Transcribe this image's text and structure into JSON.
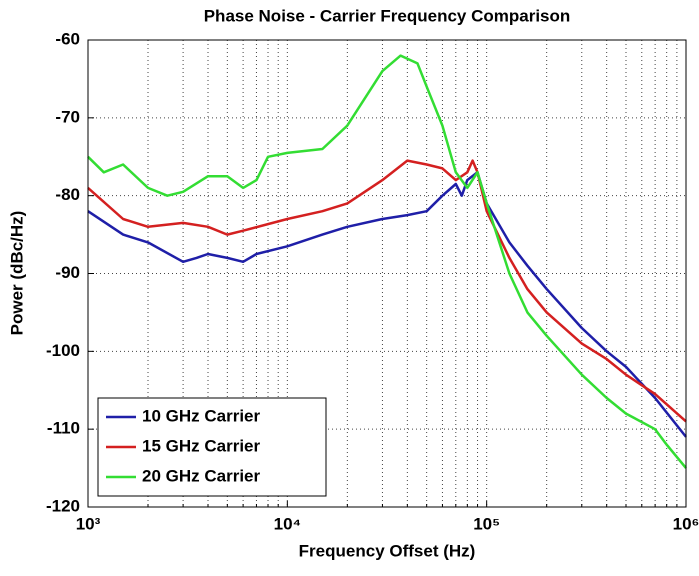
{
  "chart_data": {
    "type": "line",
    "title": "Phase Noise - Carrier Frequency Comparison",
    "x_label": "Frequency Offset (Hz)",
    "y_label": "Power (dBc/Hz)",
    "log_x": true,
    "grid": true,
    "legend": "lower left",
    "xlim": [
      1000,
      1000000
    ],
    "xticks": [
      {
        "value": 1000,
        "label": "10³"
      },
      {
        "value": 10000,
        "label": "10⁴"
      },
      {
        "value": 100000,
        "label": "10⁵"
      },
      {
        "value": 1000000,
        "label": "10⁶"
      }
    ],
    "xminorticks": [
      2000,
      3000,
      4000,
      5000,
      6000,
      7000,
      8000,
      9000,
      20000,
      30000,
      40000,
      50000,
      60000,
      70000,
      80000,
      90000,
      200000,
      300000,
      400000,
      500000,
      600000,
      700000,
      800000,
      900000
    ],
    "ylim": [
      -120,
      -60
    ],
    "yticks": [
      -120,
      -110,
      -100,
      -90,
      -80,
      -70,
      -60
    ],
    "series": [
      {
        "name": "10 GHz Carrier",
        "color": "#1f1fa8",
        "x": [
          1000,
          1500,
          2000,
          3000,
          3500,
          4000,
          5000,
          6000,
          7000,
          10000,
          15000,
          20000,
          30000,
          40000,
          50000,
          60000,
          70000,
          75000,
          80000,
          90000,
          100000,
          130000,
          160000,
          200000,
          300000,
          400000,
          500000,
          700000,
          1000000
        ],
        "values": [
          -82,
          -85,
          -86,
          -88.5,
          -88,
          -87.5,
          -88,
          -88.5,
          -87.5,
          -86.5,
          -85,
          -84,
          -83,
          -82.5,
          -82,
          -80,
          -78.5,
          -80,
          -78,
          -77,
          -81,
          -86,
          -89,
          -92,
          -97,
          -100,
          -102,
          -106,
          -111
        ]
      },
      {
        "name": "15 GHz Carrier",
        "color": "#d42020",
        "x": [
          1000,
          1500,
          2000,
          3000,
          4000,
          5000,
          6000,
          10000,
          15000,
          20000,
          30000,
          40000,
          50000,
          60000,
          70000,
          80000,
          85000,
          90000,
          100000,
          130000,
          160000,
          200000,
          300000,
          400000,
          500000,
          700000,
          1000000
        ],
        "values": [
          -79,
          -83,
          -84,
          -83.5,
          -84,
          -85,
          -84.5,
          -83,
          -82,
          -81,
          -78,
          -75.5,
          -76,
          -76.5,
          -78,
          -77,
          -75.5,
          -77,
          -82,
          -88,
          -92,
          -95,
          -99,
          -101,
          -103,
          -105.5,
          -109
        ]
      },
      {
        "name": "20 GHz Carrier",
        "color": "#33dd33",
        "x": [
          1000,
          1200,
          1500,
          2000,
          2500,
          3000,
          4000,
          5000,
          6000,
          7000,
          8000,
          10000,
          15000,
          20000,
          30000,
          37000,
          45000,
          50000,
          60000,
          70000,
          80000,
          90000,
          100000,
          130000,
          160000,
          200000,
          300000,
          400000,
          500000,
          700000,
          800000,
          1000000
        ],
        "values": [
          -75,
          -77,
          -76,
          -79,
          -80,
          -79.5,
          -77.5,
          -77.5,
          -79,
          -78,
          -75,
          -74.5,
          -74,
          -71,
          -64,
          -62,
          -63,
          -66,
          -71,
          -77,
          -79,
          -77,
          -81,
          -90,
          -95,
          -98,
          -103,
          -106,
          -108,
          -110,
          -112,
          -115
        ]
      }
    ]
  }
}
